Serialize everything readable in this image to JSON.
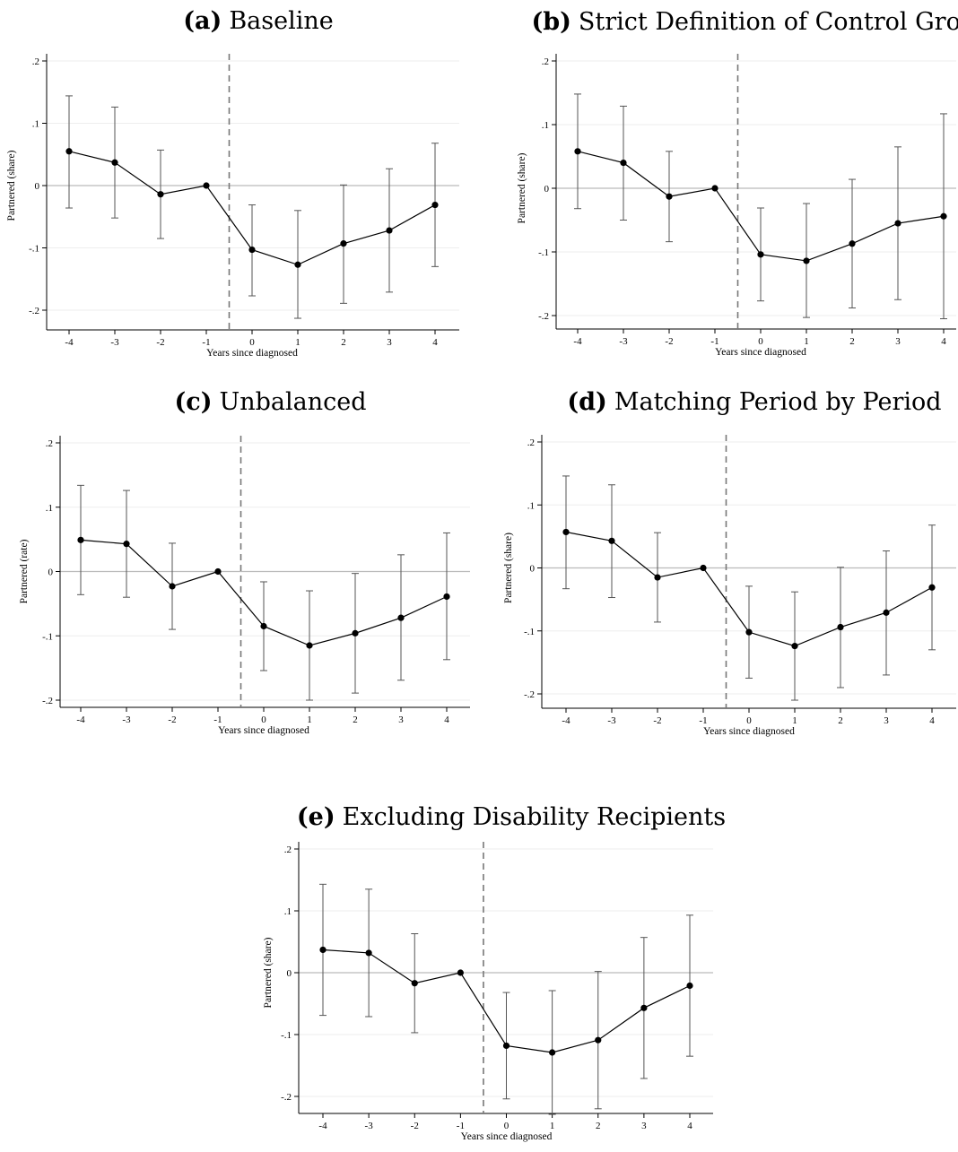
{
  "chart_data": [
    {
      "type": "line",
      "panel_letter": "(a)",
      "title": "Baseline",
      "xlabel": "Years since diagnosed",
      "ylabel": "Partnered (share)",
      "xlim": [
        -4,
        4
      ],
      "ylim": [
        -0.2,
        0.2
      ],
      "x": [
        -4,
        -3,
        -2,
        -1,
        0,
        1,
        2,
        3,
        4
      ],
      "x_tick_labels": [
        "-4",
        "-3",
        "-2",
        "-1",
        "0",
        "1",
        "2",
        "3",
        "4"
      ],
      "y_ticks": [
        0.2,
        0.1,
        0,
        -0.1,
        -0.2
      ],
      "y_tick_labels": [
        ".2",
        ".1",
        "0",
        "-.1",
        "-.2"
      ],
      "estimates": [
        0.055,
        0.037,
        -0.014,
        0.0,
        -0.103,
        -0.127,
        -0.093,
        -0.072,
        -0.031
      ],
      "ci_lower": [
        -0.036,
        -0.052,
        -0.085,
        0.0,
        -0.177,
        -0.213,
        -0.189,
        -0.171,
        -0.13
      ],
      "ci_upper": [
        0.144,
        0.126,
        0.057,
        0.0,
        -0.031,
        -0.04,
        0.001,
        0.027,
        0.068
      ],
      "reference_line_x": -0.5,
      "grid": true
    },
    {
      "type": "line",
      "panel_letter": "(b)",
      "title": "Strict Definition of Control Group",
      "xlabel": "Years since diagnosed",
      "ylabel": "Partnered (share)",
      "xlim": [
        -4,
        4
      ],
      "ylim": [
        -0.2,
        0.2
      ],
      "x": [
        -4,
        -3,
        -2,
        -1,
        0,
        1,
        2,
        3,
        4
      ],
      "x_tick_labels": [
        "-4",
        "-3",
        "-2",
        "-1",
        "0",
        "1",
        "2",
        "3",
        "4"
      ],
      "y_ticks": [
        0.2,
        0.1,
        0,
        -0.1,
        -0.2
      ],
      "y_tick_labels": [
        ".2",
        ".1",
        "0",
        "-.1",
        "-.2"
      ],
      "estimates": [
        0.058,
        0.04,
        -0.013,
        0.0,
        -0.104,
        -0.114,
        -0.087,
        -0.055,
        -0.044
      ],
      "ci_lower": [
        -0.032,
        -0.05,
        -0.084,
        0.0,
        -0.177,
        -0.203,
        -0.188,
        -0.175,
        -0.205
      ],
      "ci_upper": [
        0.148,
        0.129,
        0.058,
        0.0,
        -0.031,
        -0.024,
        0.014,
        0.065,
        0.117
      ],
      "reference_line_x": -0.5,
      "grid": true
    },
    {
      "type": "line",
      "panel_letter": "(c)",
      "title": "Unbalanced",
      "xlabel": "Years since diagnosed",
      "ylabel": "Partnered (rate)",
      "xlim": [
        -4,
        4
      ],
      "ylim": [
        -0.2,
        0.2
      ],
      "x": [
        -4,
        -3,
        -2,
        -1,
        0,
        1,
        2,
        3,
        4
      ],
      "x_tick_labels": [
        "-4",
        "-3",
        "-2",
        "-1",
        "0",
        "1",
        "2",
        "3",
        "4"
      ],
      "y_ticks": [
        0.2,
        0.1,
        0,
        -0.1,
        -0.2
      ],
      "y_tick_labels": [
        ".2",
        ".1",
        "0",
        "-.1",
        "-.2"
      ],
      "estimates": [
        0.049,
        0.043,
        -0.023,
        0.0,
        -0.085,
        -0.115,
        -0.096,
        -0.072,
        -0.039
      ],
      "ci_lower": [
        -0.036,
        -0.04,
        -0.09,
        0.0,
        -0.154,
        -0.2,
        -0.189,
        -0.169,
        -0.137
      ],
      "ci_upper": [
        0.134,
        0.126,
        0.044,
        0.0,
        -0.016,
        -0.03,
        -0.003,
        0.026,
        0.06
      ],
      "reference_line_x": -0.5,
      "grid": true
    },
    {
      "type": "line",
      "panel_letter": "(d)",
      "title": "Matching Period by Period",
      "xlabel": "Years since diagnosed",
      "ylabel": "Partnered (share)",
      "xlim": [
        -4,
        4
      ],
      "ylim": [
        -0.2,
        0.2
      ],
      "x": [
        -4,
        -3,
        -2,
        -1,
        0,
        1,
        2,
        3,
        4
      ],
      "x_tick_labels": [
        "-4",
        "-3",
        "-2",
        "-1",
        "0",
        "1",
        "2",
        "3",
        "4"
      ],
      "y_ticks": [
        0.2,
        0.1,
        0,
        -0.1,
        -0.2
      ],
      "y_tick_labels": [
        ".2",
        ".1",
        "0",
        "-.1",
        "-.2"
      ],
      "estimates": [
        0.057,
        0.043,
        -0.015,
        0.0,
        -0.102,
        -0.124,
        -0.094,
        -0.071,
        -0.031
      ],
      "ci_lower": [
        -0.033,
        -0.047,
        -0.086,
        0.0,
        -0.175,
        -0.21,
        -0.19,
        -0.17,
        -0.13
      ],
      "ci_upper": [
        0.146,
        0.132,
        0.056,
        0.0,
        -0.029,
        -0.038,
        0.001,
        0.027,
        0.068
      ],
      "reference_line_x": -0.5,
      "grid": true
    },
    {
      "type": "line",
      "panel_letter": "(e)",
      "title": "Excluding Disability Recipients",
      "xlabel": "Years since diagnosed",
      "ylabel": "Partnered (share)",
      "xlim": [
        -4,
        4
      ],
      "ylim": [
        -0.2,
        0.2
      ],
      "x": [
        -4,
        -3,
        -2,
        -1,
        0,
        1,
        2,
        3,
        4
      ],
      "x_tick_labels": [
        "-4",
        "-3",
        "-2",
        "-1",
        "0",
        "1",
        "2",
        "3",
        "4"
      ],
      "y_ticks": [
        0.2,
        0.1,
        0,
        -0.1,
        -0.2
      ],
      "y_tick_labels": [
        ".2",
        ".1",
        "0",
        "-.1",
        "-.2"
      ],
      "estimates": [
        0.037,
        0.032,
        -0.017,
        0.0,
        -0.118,
        -0.129,
        -0.109,
        -0.057,
        -0.021
      ],
      "ci_lower": [
        -0.069,
        -0.071,
        -0.097,
        0.0,
        -0.204,
        -0.229,
        -0.22,
        -0.171,
        -0.135
      ],
      "ci_upper": [
        0.143,
        0.135,
        0.063,
        0.0,
        -0.032,
        -0.029,
        0.002,
        0.057,
        0.093
      ],
      "reference_line_x": -0.5,
      "grid": true
    }
  ],
  "colors": {
    "series": "#000000",
    "ci": "#555555",
    "zero_line": "#bbbbbb",
    "grid": "#eeeeee",
    "reference_line": "#777777",
    "axis": "#000000"
  }
}
